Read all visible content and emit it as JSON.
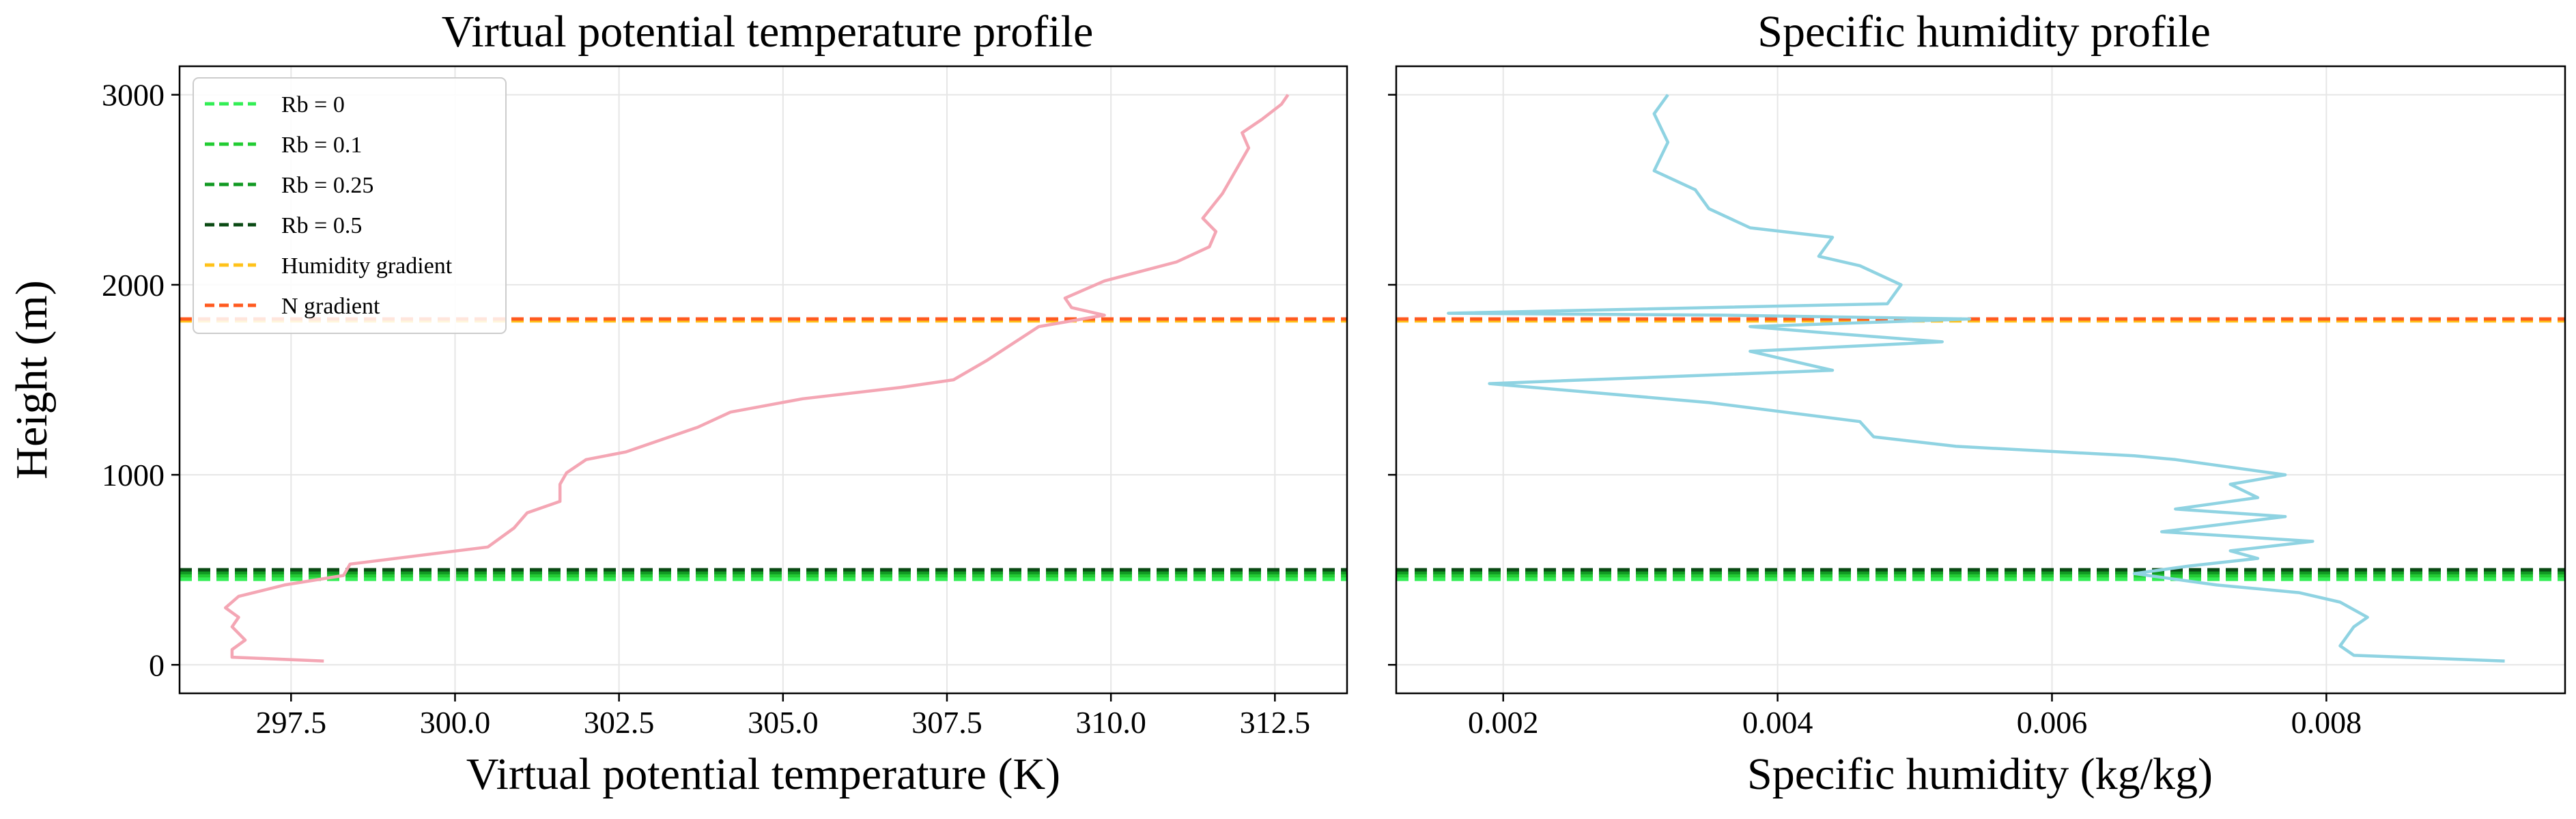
{
  "chart_data": [
    {
      "type": "line",
      "title": "Virtual potential temperature profile",
      "xlabel": "Virtual potential temperature (K)",
      "ylabel": "Height (m)",
      "xlim": [
        295.8,
        313.6
      ],
      "ylim": [
        -150,
        3150
      ],
      "xticks": [
        "297.5",
        "300.0",
        "302.5",
        "305.0",
        "307.5",
        "310.0",
        "312.5"
      ],
      "yticks": [
        "0",
        "1000",
        "2000",
        "3000"
      ],
      "grid": true,
      "legend_position": "upper-left",
      "series": [
        {
          "color": "#f4a6b4",
          "x": [
            298.0,
            296.6,
            296.6,
            296.8,
            296.6,
            296.7,
            296.5,
            296.7,
            297.4,
            298.3,
            298.4,
            300.5,
            300.9,
            301.1,
            301.6,
            301.6,
            301.7,
            302.0,
            302.6,
            303.7,
            304.2,
            305.3,
            306.8,
            307.6,
            308.1,
            308.9,
            309.9,
            309.4,
            309.3,
            309.9,
            311.0,
            311.5,
            311.6,
            311.4,
            311.7,
            311.9,
            312.1,
            312.0,
            312.3,
            312.6,
            312.7
          ],
          "y": [
            20,
            40,
            80,
            130,
            200,
            250,
            300,
            360,
            420,
            470,
            530,
            620,
            720,
            800,
            860,
            950,
            1010,
            1080,
            1120,
            1250,
            1330,
            1400,
            1460,
            1500,
            1600,
            1780,
            1840,
            1880,
            1930,
            2020,
            2120,
            2200,
            2280,
            2350,
            2480,
            2600,
            2720,
            2800,
            2870,
            2950,
            3000
          ]
        }
      ],
      "hlines": [
        {
          "name": "Rb = 0",
          "y": 450,
          "color": "#33ee55"
        },
        {
          "name": "Rb = 0.1",
          "y": 468,
          "color": "#22cc33"
        },
        {
          "name": "Rb = 0.25",
          "y": 485,
          "color": "#119922"
        },
        {
          "name": "Rb = 0.5",
          "y": 500,
          "color": "#0a4a14"
        },
        {
          "name": "Humidity gradient",
          "y": 1810,
          "color": "#ffc21a"
        },
        {
          "name": "N gradient",
          "y": 1820,
          "color": "#ff5a1f"
        }
      ]
    },
    {
      "type": "line",
      "title": "Specific humidity profile",
      "xlabel": "Specific humidity (kg/kg)",
      "ylabel": "",
      "xlim": [
        0.00122,
        0.00974
      ],
      "ylim": [
        -150,
        3150
      ],
      "xticks": [
        "0.002",
        "0.004",
        "0.006",
        "0.008"
      ],
      "yticks": [
        "0",
        "1000",
        "2000",
        "3000"
      ],
      "grid": true,
      "series": [
        {
          "color": "#8fd3e2",
          "x": [
            0.0093,
            0.0082,
            0.0081,
            0.0082,
            0.0083,
            0.0081,
            0.0078,
            0.0072,
            0.0066,
            0.007,
            0.0075,
            0.0073,
            0.0079,
            0.0068,
            0.0077,
            0.0069,
            0.0075,
            0.0073,
            0.0077,
            0.0069,
            0.0066,
            0.0053,
            0.0047,
            0.0046,
            0.0035,
            0.0019,
            0.0044,
            0.0038,
            0.0052,
            0.0043,
            0.0038,
            0.0054,
            0.0036,
            0.0016,
            0.0048,
            0.0049,
            0.0046,
            0.0043,
            0.0044,
            0.0038,
            0.0035,
            0.0034,
            0.0031,
            0.0032,
            0.0031,
            0.0032
          ],
          "y": [
            20,
            50,
            100,
            200,
            250,
            330,
            380,
            420,
            480,
            520,
            560,
            600,
            650,
            700,
            780,
            820,
            880,
            950,
            1000,
            1080,
            1100,
            1150,
            1200,
            1280,
            1380,
            1480,
            1550,
            1650,
            1700,
            1750,
            1780,
            1820,
            1840,
            1850,
            1900,
            2000,
            2100,
            2150,
            2250,
            2300,
            2400,
            2500,
            2600,
            2750,
            2900,
            3000
          ]
        }
      ],
      "hlines": [
        {
          "name": "Rb = 0",
          "y": 450,
          "color": "#33ee55"
        },
        {
          "name": "Rb = 0.1",
          "y": 468,
          "color": "#22cc33"
        },
        {
          "name": "Rb = 0.25",
          "y": 485,
          "color": "#119922"
        },
        {
          "name": "Rb = 0.5",
          "y": 500,
          "color": "#0a4a14"
        },
        {
          "name": "Humidity gradient",
          "y": 1810,
          "color": "#ffc21a"
        },
        {
          "name": "N gradient",
          "y": 1820,
          "color": "#ff5a1f"
        }
      ]
    }
  ]
}
